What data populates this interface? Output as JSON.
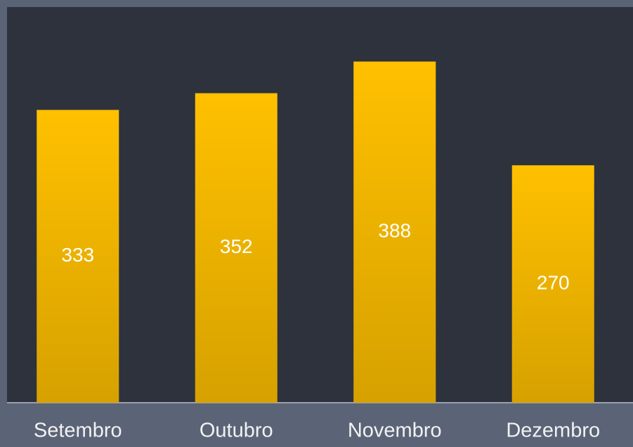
{
  "chart_data": {
    "type": "bar",
    "categories": [
      "Setembro",
      "Outubro",
      "Novembro",
      "Dezembro"
    ],
    "values": [
      333,
      352,
      388,
      270
    ],
    "color": "#ffc000",
    "ylim": [
      0,
      450
    ]
  }
}
